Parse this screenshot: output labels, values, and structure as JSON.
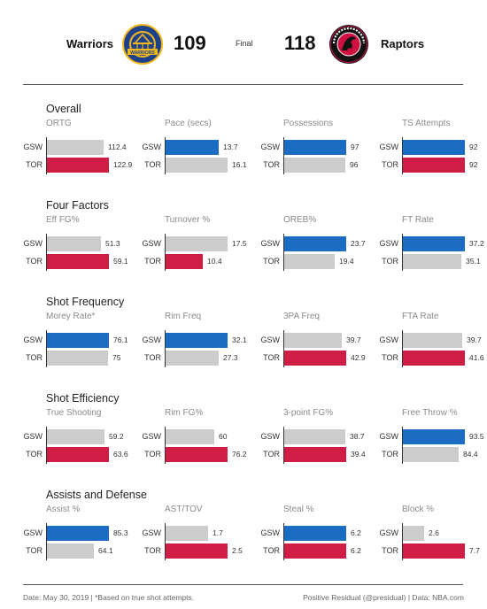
{
  "header": {
    "away_team": "Warriors",
    "away_score": "109",
    "status": "Final",
    "home_score": "118",
    "home_team": "Raptors",
    "away_logo_text": "GOLDEN STATE WARRIORS",
    "home_logo_text": "TORONTO RAPTORS"
  },
  "colors": {
    "gsw": "#1b6cc3",
    "tor": "#cf1d45",
    "neutral": "#cccccc"
  },
  "chart_data": {
    "type": "bar",
    "row_labels": [
      "GSW",
      "TOR"
    ],
    "sections": [
      {
        "title": "Overall",
        "metrics": [
          {
            "title": "ORTG",
            "gsw": 112.4,
            "tor": 122.9,
            "gsw_label": "112.4",
            "tor_label": "122.9",
            "highlight": "tor"
          },
          {
            "title": "Pace (secs)",
            "gsw": 13.7,
            "tor": 16.1,
            "gsw_label": "13.7",
            "tor_label": "16.1",
            "highlight": "gsw"
          },
          {
            "title": "Possessions",
            "gsw": 97,
            "tor": 96,
            "gsw_label": "97",
            "tor_label": "96",
            "highlight": "gsw"
          },
          {
            "title": "TS Attempts",
            "gsw": 92,
            "tor": 92,
            "gsw_label": "92",
            "tor_label": "92",
            "highlight": "both"
          }
        ]
      },
      {
        "title": "Four Factors",
        "metrics": [
          {
            "title": "Eff FG%",
            "gsw": 51.3,
            "tor": 59.1,
            "gsw_label": "51.3",
            "tor_label": "59.1",
            "highlight": "tor"
          },
          {
            "title": "Turnover %",
            "gsw": 17.5,
            "tor": 10.4,
            "gsw_label": "17.5",
            "tor_label": "10.4",
            "highlight": "tor"
          },
          {
            "title": "OREB%",
            "gsw": 23.7,
            "tor": 19.4,
            "gsw_label": "23.7",
            "tor_label": "19.4",
            "highlight": "gsw"
          },
          {
            "title": "FT Rate",
            "gsw": 37.2,
            "tor": 35.1,
            "gsw_label": "37.2",
            "tor_label": "35.1",
            "highlight": "gsw"
          }
        ]
      },
      {
        "title": "Shot Frequency",
        "metrics": [
          {
            "title": "Morey Rate*",
            "gsw": 76.1,
            "tor": 75,
            "gsw_label": "76.1",
            "tor_label": "75",
            "highlight": "gsw"
          },
          {
            "title": "Rim Freq",
            "gsw": 32.1,
            "tor": 27.3,
            "gsw_label": "32.1",
            "tor_label": "27.3",
            "highlight": "gsw"
          },
          {
            "title": "3PA Freq",
            "gsw": 39.7,
            "tor": 42.9,
            "gsw_label": "39.7",
            "tor_label": "42.9",
            "highlight": "tor"
          },
          {
            "title": "FTA Rate",
            "gsw": 39.7,
            "tor": 41.6,
            "gsw_label": "39.7",
            "tor_label": "41.6",
            "highlight": "tor"
          }
        ]
      },
      {
        "title": "Shot Efficiency",
        "metrics": [
          {
            "title": "True Shooting",
            "gsw": 59.2,
            "tor": 63.6,
            "gsw_label": "59.2",
            "tor_label": "63.6",
            "highlight": "tor"
          },
          {
            "title": "Rim FG%",
            "gsw": 60,
            "tor": 76.2,
            "gsw_label": "60",
            "tor_label": "76.2",
            "highlight": "tor"
          },
          {
            "title": "3-point FG%",
            "gsw": 38.7,
            "tor": 39.4,
            "gsw_label": "38.7",
            "tor_label": "39.4",
            "highlight": "tor"
          },
          {
            "title": "Free Throw %",
            "gsw": 93.5,
            "tor": 84.4,
            "gsw_label": "93.5",
            "tor_label": "84.4",
            "highlight": "gsw"
          }
        ]
      },
      {
        "title": "Assists and Defense",
        "metrics": [
          {
            "title": "Assist %",
            "gsw": 85.3,
            "tor": 64.1,
            "gsw_label": "85.3",
            "tor_label": "64.1",
            "highlight": "gsw"
          },
          {
            "title": "AST/TOV",
            "gsw": 1.7,
            "tor": 2.5,
            "gsw_label": "1.7",
            "tor_label": "2.5",
            "highlight": "tor"
          },
          {
            "title": "Steal %",
            "gsw": 6.2,
            "tor": 6.2,
            "gsw_label": "6.2",
            "tor_label": "6.2",
            "highlight": "both"
          },
          {
            "title": "Block %",
            "gsw": 2.6,
            "tor": 7.7,
            "gsw_label": "2.6",
            "tor_label": "7.7",
            "highlight": "tor"
          }
        ]
      }
    ]
  },
  "footer": {
    "left": "Date:  May 30, 2019  |  *Based on true shot attempts.",
    "right": "Positive Residual (@presidual)  |  Data: NBA.com"
  }
}
